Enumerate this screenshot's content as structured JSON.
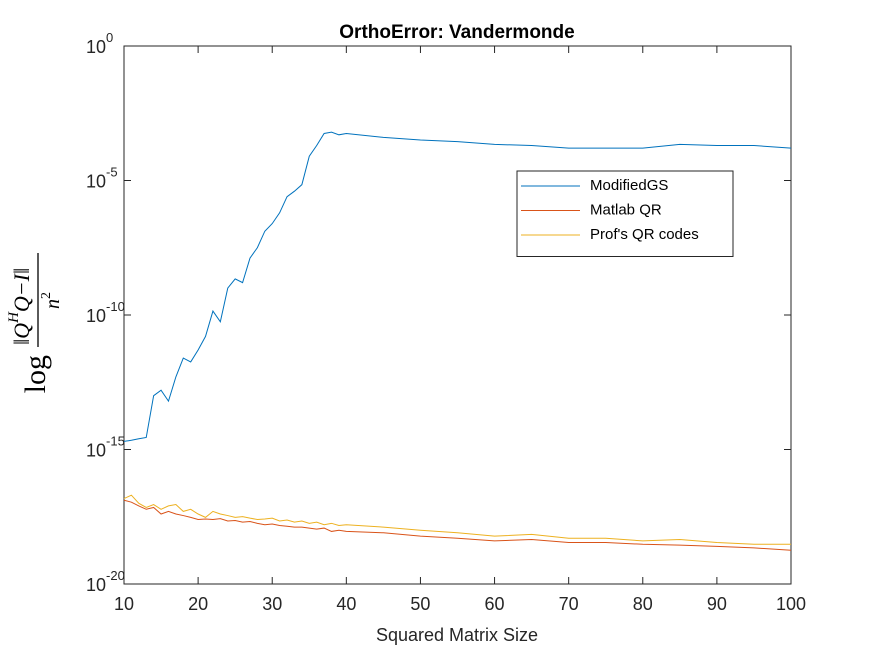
{
  "chart_data": {
    "type": "line",
    "title": "OrthoError: Vandermonde",
    "xlabel": "Squared Matrix Size",
    "ylabel": {
      "prefix": "log",
      "numerator": [
        "‖Q",
        "H",
        "Q−I‖"
      ],
      "denominator": [
        "n",
        "2"
      ]
    },
    "log_y": true,
    "grid": false,
    "legend_position": "upper-right",
    "xlim": [
      10,
      100
    ],
    "xticks": [
      10,
      20,
      30,
      40,
      50,
      60,
      70,
      80,
      90,
      100
    ],
    "ylim": [
      1e-20,
      1
    ],
    "yticks": [
      {
        "value": 1e-20,
        "label": "10",
        "exponent": "-20"
      },
      {
        "value": 1e-15,
        "label": "10",
        "exponent": "-15"
      },
      {
        "value": 1e-10,
        "label": "10",
        "exponent": "-10"
      },
      {
        "value": 1e-05,
        "label": "10",
        "exponent": "-5"
      },
      {
        "value": 1,
        "label": "10",
        "exponent": "0"
      }
    ],
    "x": [
      10,
      11,
      12,
      13,
      14,
      15,
      16,
      17,
      18,
      19,
      20,
      21,
      22,
      23,
      24,
      25,
      26,
      27,
      28,
      29,
      30,
      31,
      32,
      33,
      34,
      35,
      36,
      37,
      38,
      39,
      40,
      45,
      50,
      55,
      60,
      65,
      70,
      75,
      80,
      85,
      90,
      95,
      100
    ],
    "series": [
      {
        "name": "ModifiedGS",
        "color": "#0072bd",
        "values": [
          2e-15,
          2.2e-15,
          2.5e-15,
          2.8e-15,
          1e-13,
          1.6e-13,
          6.3e-14,
          5e-13,
          2.5e-12,
          1.8e-12,
          5e-12,
          1.6e-11,
          1.4e-10,
          5.6e-11,
          1e-09,
          2.2e-09,
          1.6e-09,
          1.3e-08,
          3.2e-08,
          1.3e-07,
          2.5e-07,
          6.3e-07,
          2.5e-06,
          4e-06,
          7e-06,
          8e-05,
          0.0002,
          0.00056,
          0.00063,
          0.0005,
          0.00056,
          0.0004,
          0.00032,
          0.00028,
          0.00022,
          0.0002,
          0.00016,
          0.00016,
          0.00016,
          0.00022,
          0.0002,
          0.0002,
          0.00016
        ]
      },
      {
        "name": "Matlab QR",
        "color": "#d95319",
        "values": [
          1.3e-17,
          1.1e-17,
          8e-18,
          6e-18,
          7e-18,
          4e-18,
          5e-18,
          4e-18,
          3.5e-18,
          3e-18,
          2.5e-18,
          2.6e-18,
          2.5e-18,
          2.7e-18,
          2.2e-18,
          2.3e-18,
          2e-18,
          2.1e-18,
          1.8e-18,
          1.6e-18,
          1.7e-18,
          1.5e-18,
          1.4e-18,
          1.3e-18,
          1.3e-18,
          1.2e-18,
          1.1e-18,
          1.2e-18,
          9e-19,
          1e-18,
          9e-19,
          8e-19,
          6e-19,
          5e-19,
          4e-19,
          4.5e-19,
          3.5e-19,
          3.5e-19,
          3e-19,
          2.8e-19,
          2.5e-19,
          2.2e-19,
          1.8e-19
        ]
      },
      {
        "name": "Prof's QR codes",
        "color": "#edb120",
        "values": [
          1.5e-17,
          2e-17,
          1e-17,
          7e-18,
          9e-18,
          6e-18,
          8e-18,
          9e-18,
          5e-18,
          6e-18,
          4e-18,
          3e-18,
          5e-18,
          4e-18,
          3.5e-18,
          3e-18,
          3.2e-18,
          2.8e-18,
          2.5e-18,
          2.6e-18,
          2.8e-18,
          2.2e-18,
          2.4e-18,
          2e-18,
          2.2e-18,
          1.8e-18,
          2e-18,
          1.6e-18,
          1.8e-18,
          1.5e-18,
          1.6e-18,
          1.3e-18,
          1e-18,
          8e-19,
          6e-19,
          7e-19,
          5e-19,
          5e-19,
          4e-19,
          4.5e-19,
          3.5e-19,
          3e-19,
          3e-19
        ]
      }
    ]
  }
}
